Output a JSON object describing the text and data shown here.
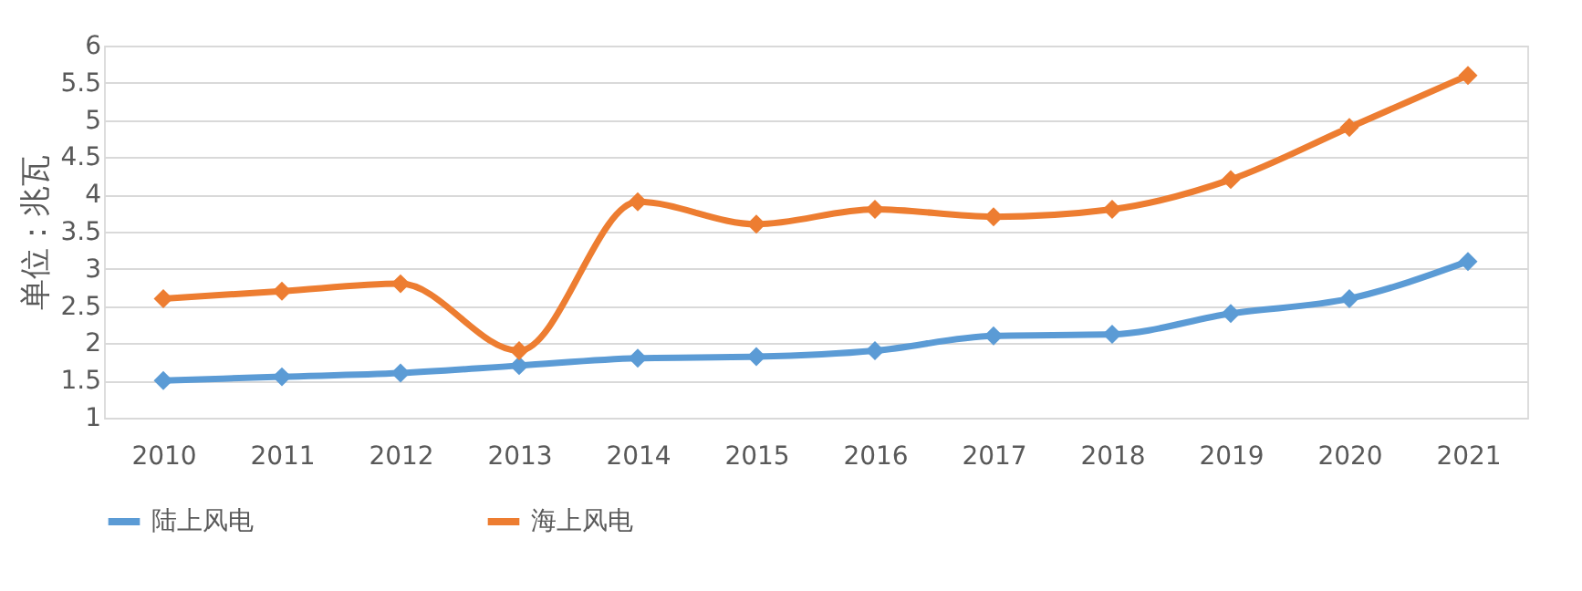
{
  "chart_data": {
    "type": "line",
    "ylabel": "单位：兆瓦",
    "categories": [
      "2010",
      "2011",
      "2012",
      "2013",
      "2014",
      "2015",
      "2016",
      "2017",
      "2018",
      "2019",
      "2020",
      "2021"
    ],
    "series": [
      {
        "name": "陆上风电",
        "color": "#5b9bd5",
        "values": [
          1.5,
          1.55,
          1.6,
          1.7,
          1.8,
          1.82,
          1.9,
          2.1,
          2.12,
          2.4,
          2.6,
          3.1
        ]
      },
      {
        "name": "海上风电",
        "color": "#ed7d31",
        "values": [
          2.6,
          2.7,
          2.8,
          1.9,
          3.9,
          3.6,
          3.8,
          3.7,
          3.8,
          4.2,
          4.9,
          5.6
        ]
      }
    ],
    "ylim": [
      1,
      6
    ],
    "yticks": [
      1,
      1.5,
      2,
      2.5,
      3,
      3.5,
      4,
      4.5,
      5,
      5.5,
      6
    ],
    "grid": "y",
    "legend": "bottom",
    "marker": "diamond",
    "line_style": "solid"
  }
}
